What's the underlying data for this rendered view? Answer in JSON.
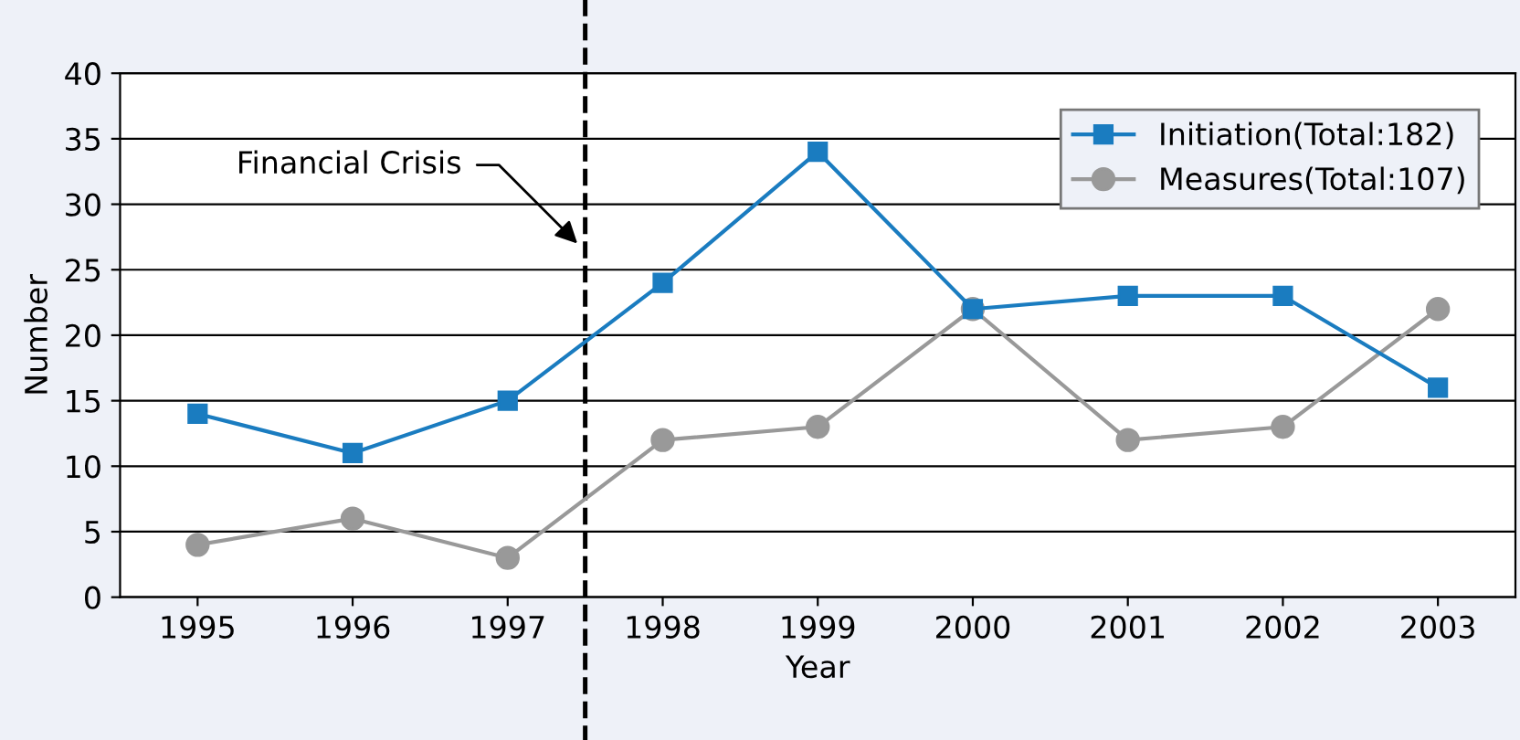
{
  "chart_data": {
    "type": "line",
    "xlabel": "Year",
    "ylabel": "Number",
    "x": [
      1995,
      1996,
      1997,
      1998,
      1999,
      2000,
      2001,
      2002,
      2003
    ],
    "xlim": [
      1994.5,
      2003.5
    ],
    "xticks": [
      1995,
      1996,
      1997,
      1998,
      1999,
      2000,
      2001,
      2002,
      2003
    ],
    "ylim": [
      0,
      40
    ],
    "yticks": [
      0,
      5,
      10,
      15,
      20,
      25,
      30,
      35,
      40
    ],
    "grid": "y",
    "legend": "top right",
    "series": [
      {
        "name": "Initiation(Total:182)",
        "color": "#1a7cc0",
        "marker": "square",
        "values": [
          14,
          11,
          15,
          24,
          34,
          22,
          23,
          23,
          16
        ]
      },
      {
        "name": "Measures(Total:107)",
        "color": "#999999",
        "marker": "circle",
        "values": [
          4,
          6,
          3,
          12,
          13,
          22,
          12,
          13,
          22
        ]
      }
    ],
    "ref_lines": [
      {
        "axis": "x",
        "value": 1997.5,
        "color": "#000000",
        "line_style": "dashed"
      }
    ],
    "annotations": [
      {
        "text": "Financial Crisis",
        "x": 1997.45,
        "y": 27
      }
    ]
  }
}
